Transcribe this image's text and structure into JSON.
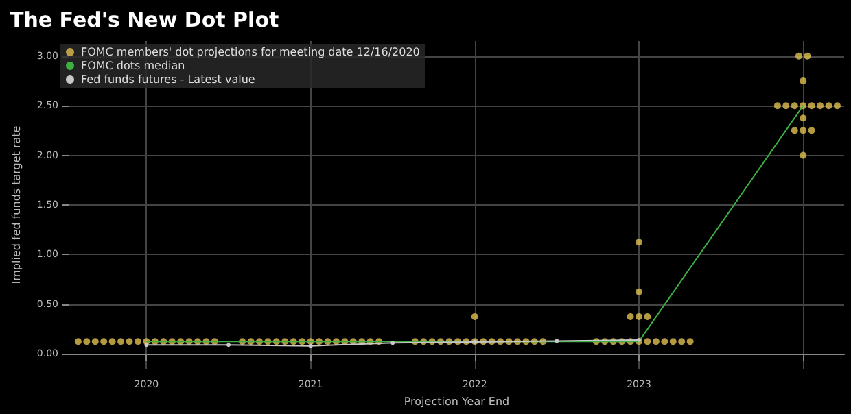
{
  "chart_data": {
    "type": "scatter",
    "title": "The Fed's New Dot Plot",
    "xlabel": "Projection Year End",
    "ylabel": "Implied fed funds target rate",
    "xlim": [
      2019.53,
      2024.25
    ],
    "xticks": [
      2020,
      2021,
      2022,
      2023,
      {
        "value": 2024,
        "label": null
      }
    ],
    "ylim": [
      -0.15,
      3.15
    ],
    "yticks": [
      {
        "value": 0,
        "label": "0.00"
      },
      {
        "value": 0.5,
        "label": "0.50"
      },
      {
        "value": 1,
        "label": "1.00"
      },
      {
        "value": 1.5,
        "label": "1.50"
      },
      {
        "value": 2,
        "label": "2.00"
      },
      {
        "value": 2.5,
        "label": "2.50"
      },
      {
        "value": 3,
        "label": "3.00"
      }
    ],
    "grid": true,
    "legend": "top left",
    "series": [
      {
        "name": "FOMC members' dot projections for meeting date 12/16/2020",
        "marker": "circle",
        "color": "#e0c050",
        "x": [
          2019.584,
          2019.636,
          2019.688,
          2019.74,
          2019.792,
          2019.844,
          2019.896,
          2019.948,
          2020.0,
          2020.052,
          2020.104,
          2020.156,
          2020.208,
          2020.26,
          2020.312,
          2020.364,
          2020.416,
          2020.584,
          2020.636,
          2020.688,
          2020.74,
          2020.792,
          2020.844,
          2020.896,
          2020.948,
          2021.0,
          2021.052,
          2021.104,
          2021.156,
          2021.208,
          2021.26,
          2021.312,
          2021.364,
          2021.416,
          2021.636,
          2021.688,
          2021.74,
          2021.792,
          2021.844,
          2021.896,
          2021.948,
          2022.0,
          2022.052,
          2022.104,
          2022.156,
          2022.208,
          2022.26,
          2022.312,
          2022.364,
          2022.416,
          2022.0,
          2022.74,
          2022.792,
          2022.844,
          2022.896,
          2022.948,
          2023.0,
          2023.052,
          2023.104,
          2023.156,
          2023.208,
          2023.26,
          2023.312,
          2022.948,
          2023.0,
          2023.052,
          2023.0,
          2023.0,
          2023.844,
          2023.896,
          2023.948,
          2024.0,
          2024.052,
          2024.104,
          2024.156,
          2024.208,
          2023.974,
          2024.026,
          2024.0,
          2024.0,
          2023.948,
          2024.0,
          2024.052,
          2024.0
        ],
        "values": [
          0.125,
          0.125,
          0.125,
          0.125,
          0.125,
          0.125,
          0.125,
          0.125,
          0.125,
          0.125,
          0.125,
          0.125,
          0.125,
          0.125,
          0.125,
          0.125,
          0.125,
          0.125,
          0.125,
          0.125,
          0.125,
          0.125,
          0.125,
          0.125,
          0.125,
          0.125,
          0.125,
          0.125,
          0.125,
          0.125,
          0.125,
          0.125,
          0.125,
          0.125,
          0.125,
          0.125,
          0.125,
          0.125,
          0.125,
          0.125,
          0.125,
          0.125,
          0.125,
          0.125,
          0.125,
          0.125,
          0.125,
          0.125,
          0.125,
          0.125,
          0.375,
          0.125,
          0.125,
          0.125,
          0.125,
          0.125,
          0.125,
          0.125,
          0.125,
          0.125,
          0.125,
          0.125,
          0.125,
          0.375,
          0.375,
          0.375,
          0.625,
          1.125,
          2.5,
          2.5,
          2.5,
          2.5,
          2.5,
          2.5,
          2.5,
          2.5,
          3.0,
          3.0,
          2.75,
          2.375,
          2.25,
          2.25,
          2.25,
          2.0
        ]
      },
      {
        "name": "FOMC dots median",
        "type": "line",
        "marker": "none",
        "color": "#3cb043",
        "x": [
          2020,
          2021,
          2022,
          2023,
          2024
        ],
        "values": [
          0.125,
          0.125,
          0.125,
          0.125,
          2.5
        ]
      },
      {
        "name": "Fed funds futures - Latest value",
        "type": "line",
        "marker": "circle",
        "color": "#c8c8c8",
        "x": [
          2020,
          2020.5,
          2021,
          2021.5,
          2022,
          2022.5,
          2023
        ],
        "values": [
          0.09,
          0.09,
          0.08,
          0.11,
          0.12,
          0.13,
          0.14
        ]
      }
    ]
  }
}
